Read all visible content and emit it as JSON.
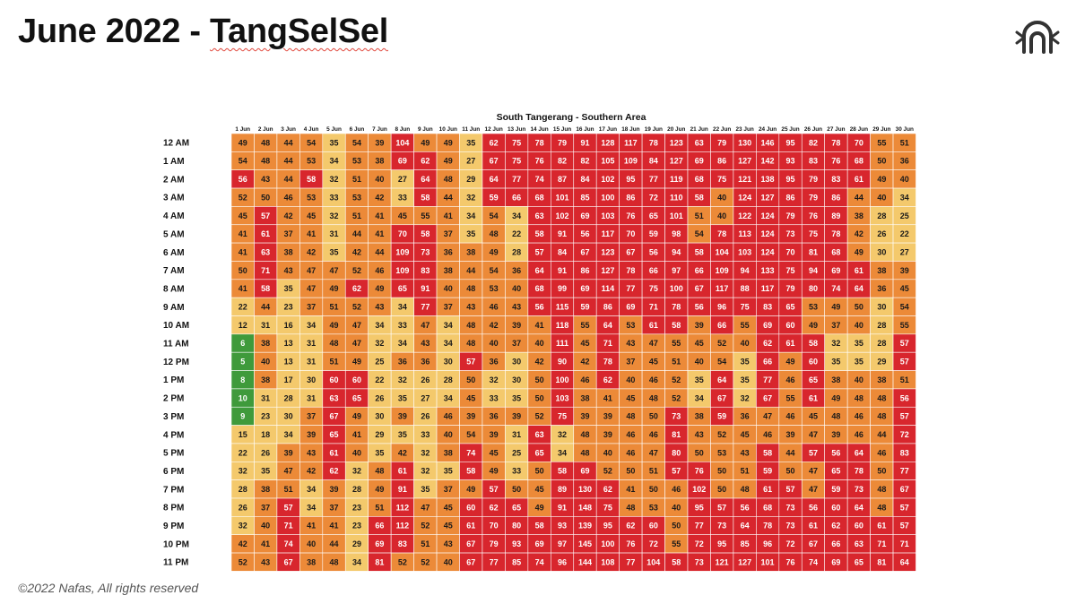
{
  "slide": {
    "title_prefix": "June 2022 - ",
    "title_brand": "TangSelSel",
    "footer": "©2022 Nafas, All rights reserved",
    "logo_icon": "nafas-logo-icon"
  },
  "colors": {
    "green": "#3f9a3b",
    "yellow": "#f4c96c",
    "orange": "#ec8a38",
    "red": "#d8262d",
    "grid_line": "#ffffff"
  },
  "chart_data": {
    "type": "heatmap",
    "title": "South Tangerang - Southern Area",
    "x_labels": [
      "1 Jun",
      "2 Jun",
      "3 Jun",
      "4 Jun",
      "5 Jun",
      "6 Jun",
      "7 Jun",
      "8 Jun",
      "9 Jun",
      "10 Jun",
      "11 Jun",
      "12 Jun",
      "13 Jun",
      "14 Jun",
      "15 Jun",
      "16 Jun",
      "17 Jun",
      "18 Jun",
      "19 Jun",
      "20 Jun",
      "21 Jun",
      "22 Jun",
      "23 Jun",
      "24 Jun",
      "25 Jun",
      "26 Jun",
      "27 Jun",
      "28 Jun",
      "29 Jun",
      "30 Jun"
    ],
    "y_labels": [
      "12 AM",
      "1 AM",
      "2 AM",
      "3 AM",
      "4 AM",
      "5 AM",
      "6 AM",
      "7 AM",
      "8 AM",
      "9 AM",
      "10 AM",
      "11 AM",
      "12 PM",
      "1 PM",
      "2 PM",
      "3 PM",
      "4 PM",
      "5 PM",
      "6 PM",
      "7 PM",
      "8 PM",
      "9 PM",
      "10 PM",
      "11 PM"
    ],
    "color_thresholds": [
      {
        "max": 10,
        "color": "green"
      },
      {
        "max": 35,
        "color": "yellow"
      },
      {
        "max": 55,
        "color": "orange"
      },
      {
        "max": 10000,
        "color": "red"
      }
    ],
    "values": [
      [
        49,
        48,
        44,
        54,
        35,
        54,
        39,
        104,
        49,
        49,
        35,
        62,
        75,
        78,
        79,
        91,
        128,
        117,
        78,
        123,
        63,
        79,
        130,
        146,
        95,
        82,
        78,
        70,
        55,
        51
      ],
      [
        54,
        48,
        44,
        53,
        34,
        53,
        38,
        69,
        62,
        49,
        27,
        67,
        75,
        76,
        82,
        82,
        105,
        109,
        84,
        127,
        69,
        86,
        127,
        142,
        93,
        83,
        76,
        68,
        50,
        36
      ],
      [
        56,
        43,
        44,
        58,
        32,
        51,
        40,
        27,
        64,
        48,
        29,
        64,
        77,
        74,
        87,
        84,
        102,
        95,
        77,
        119,
        68,
        75,
        121,
        138,
        95,
        79,
        83,
        61,
        49,
        40
      ],
      [
        52,
        50,
        46,
        53,
        33,
        53,
        42,
        33,
        58,
        44,
        32,
        59,
        66,
        68,
        101,
        85,
        100,
        86,
        72,
        110,
        58,
        40,
        124,
        127,
        86,
        79,
        86,
        44,
        40,
        34
      ],
      [
        45,
        57,
        42,
        45,
        32,
        51,
        41,
        45,
        55,
        41,
        34,
        54,
        34,
        63,
        102,
        69,
        103,
        76,
        65,
        101,
        51,
        40,
        122,
        124,
        79,
        76,
        89,
        38,
        28,
        25
      ],
      [
        41,
        61,
        37,
        41,
        31,
        44,
        41,
        70,
        58,
        37,
        35,
        48,
        22,
        58,
        91,
        56,
        117,
        70,
        59,
        98,
        54,
        78,
        113,
        124,
        73,
        75,
        78,
        42,
        26,
        22
      ],
      [
        41,
        63,
        38,
        42,
        35,
        42,
        44,
        109,
        73,
        36,
        38,
        49,
        28,
        57,
        84,
        67,
        123,
        67,
        56,
        94,
        58,
        104,
        103,
        124,
        70,
        81,
        68,
        49,
        30,
        27
      ],
      [
        50,
        71,
        43,
        47,
        47,
        52,
        46,
        109,
        83,
        38,
        44,
        54,
        36,
        64,
        91,
        86,
        127,
        78,
        66,
        97,
        66,
        109,
        94,
        133,
        75,
        94,
        69,
        61,
        38,
        39
      ],
      [
        41,
        58,
        35,
        47,
        49,
        62,
        49,
        65,
        91,
        40,
        48,
        53,
        40,
        68,
        99,
        69,
        114,
        77,
        75,
        100,
        67,
        117,
        88,
        117,
        79,
        80,
        74,
        64,
        36,
        45
      ],
      [
        22,
        44,
        23,
        37,
        51,
        52,
        43,
        34,
        77,
        37,
        43,
        46,
        43,
        56,
        115,
        59,
        86,
        69,
        71,
        78,
        56,
        96,
        75,
        83,
        65,
        53,
        49,
        50,
        30,
        54
      ],
      [
        12,
        31,
        16,
        34,
        49,
        47,
        34,
        33,
        47,
        34,
        48,
        42,
        39,
        41,
        118,
        55,
        64,
        53,
        61,
        58,
        39,
        66,
        55,
        69,
        60,
        49,
        37,
        40,
        28,
        55
      ],
      [
        6,
        38,
        13,
        31,
        48,
        47,
        32,
        34,
        43,
        34,
        48,
        40,
        37,
        40,
        111,
        45,
        71,
        43,
        47,
        55,
        45,
        52,
        40,
        62,
        61,
        58,
        32,
        35,
        28,
        57
      ],
      [
        5,
        40,
        13,
        31,
        51,
        49,
        25,
        36,
        36,
        30,
        57,
        36,
        30,
        42,
        90,
        42,
        78,
        37,
        45,
        51,
        40,
        54,
        35,
        66,
        49,
        60,
        35,
        35,
        29,
        57
      ],
      [
        8,
        38,
        17,
        30,
        60,
        60,
        22,
        32,
        26,
        28,
        50,
        32,
        30,
        50,
        100,
        46,
        62,
        40,
        46,
        52,
        35,
        64,
        35,
        77,
        46,
        65,
        38,
        40,
        38,
        51
      ],
      [
        10,
        31,
        28,
        31,
        63,
        65,
        26,
        35,
        27,
        34,
        45,
        33,
        35,
        50,
        103,
        38,
        41,
        45,
        48,
        52,
        34,
        67,
        32,
        67,
        55,
        61,
        49,
        48,
        48,
        56
      ],
      [
        9,
        23,
        30,
        37,
        67,
        49,
        30,
        39,
        26,
        46,
        39,
        36,
        39,
        52,
        75,
        39,
        39,
        48,
        50,
        73,
        38,
        59,
        36,
        47,
        46,
        45,
        48,
        46,
        48,
        57
      ],
      [
        15,
        18,
        34,
        39,
        65,
        41,
        29,
        35,
        33,
        40,
        54,
        39,
        31,
        63,
        32,
        48,
        39,
        46,
        46,
        81,
        43,
        52,
        45,
        46,
        39,
        47,
        39,
        46,
        44,
        72
      ],
      [
        22,
        26,
        39,
        43,
        61,
        40,
        35,
        42,
        32,
        38,
        74,
        45,
        25,
        65,
        34,
        48,
        40,
        46,
        47,
        80,
        50,
        53,
        43,
        58,
        44,
        57,
        56,
        64,
        46,
        83
      ],
      [
        32,
        35,
        47,
        42,
        62,
        32,
        48,
        61,
        32,
        35,
        58,
        49,
        33,
        50,
        58,
        69,
        52,
        50,
        51,
        57,
        76,
        50,
        51,
        59,
        50,
        47,
        65,
        78,
        50,
        77
      ],
      [
        28,
        38,
        51,
        34,
        39,
        28,
        49,
        91,
        35,
        37,
        49,
        57,
        50,
        45,
        89,
        130,
        62,
        41,
        50,
        46,
        102,
        50,
        48,
        61,
        57,
        47,
        59,
        73,
        48,
        67
      ],
      [
        26,
        37,
        57,
        34,
        37,
        23,
        51,
        112,
        47,
        45,
        60,
        62,
        65,
        49,
        91,
        148,
        75,
        48,
        53,
        40,
        95,
        57,
        56,
        68,
        73,
        56,
        60,
        64,
        48,
        57
      ],
      [
        32,
        40,
        71,
        41,
        41,
        23,
        66,
        112,
        52,
        45,
        61,
        70,
        80,
        58,
        93,
        139,
        95,
        62,
        60,
        50,
        77,
        73,
        64,
        78,
        73,
        61,
        62,
        60,
        61,
        57
      ],
      [
        42,
        41,
        74,
        40,
        44,
        29,
        69,
        83,
        51,
        43,
        67,
        79,
        93,
        69,
        97,
        145,
        100,
        76,
        72,
        55,
        72,
        95,
        85,
        96,
        72,
        67,
        66,
        63,
        71,
        71
      ],
      [
        52,
        43,
        67,
        38,
        48,
        34,
        81,
        52,
        52,
        40,
        67,
        77,
        85,
        74,
        96,
        144,
        108,
        77,
        104,
        58,
        73,
        121,
        127,
        101,
        76,
        74,
        69,
        65,
        81,
        64
      ]
    ]
  }
}
